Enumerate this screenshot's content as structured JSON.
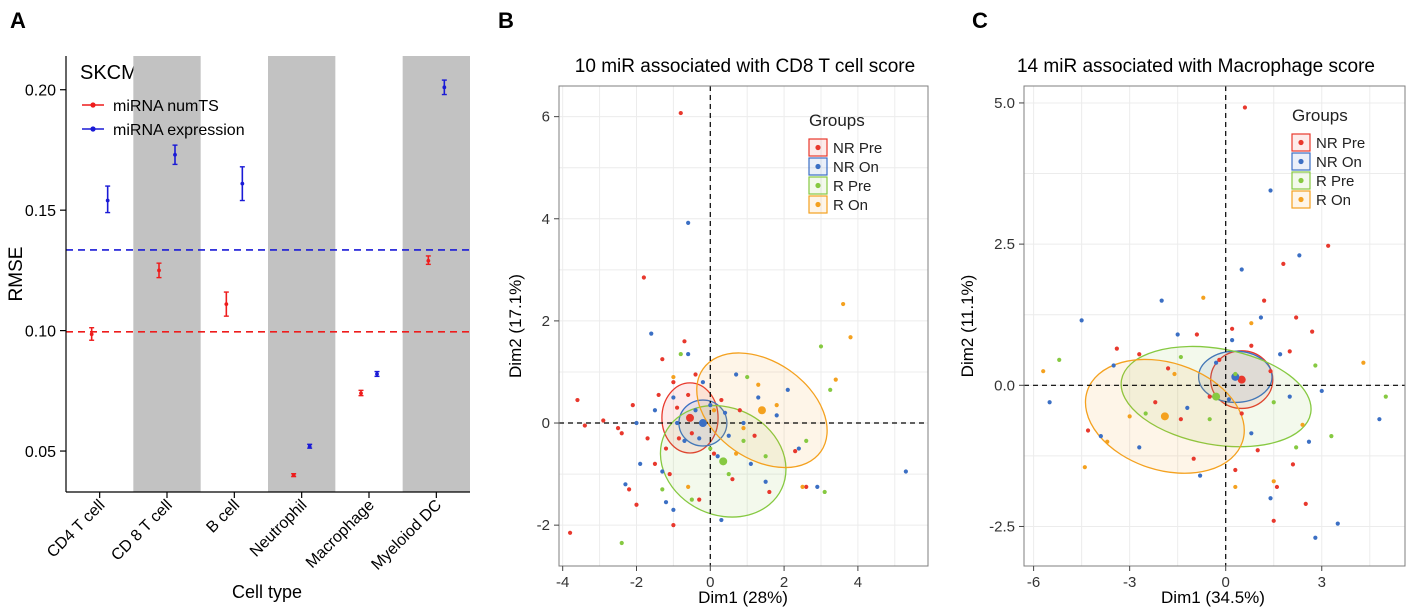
{
  "panels": {
    "A": {
      "letter": "A",
      "title": "SKCM",
      "chart_data": {
        "type": "errorbar",
        "categories": [
          "CD4 T cell",
          "CD 8 T cell",
          "B cell",
          "Neutrophil",
          "Macrophage",
          "Myeloiod DC"
        ],
        "shaded_categories": [
          "CD 8 T cell",
          "Neutrophil",
          "Myeloiod DC"
        ],
        "xlabel": "Cell type",
        "ylabel": "RMSE",
        "ylim": [
          0.033,
          0.214
        ],
        "yticks": [
          0.05,
          0.1,
          0.15,
          0.2
        ],
        "ytick_labels": [
          "0.05",
          "0.10",
          "0.15",
          "0.20"
        ],
        "legend_position": "top-left",
        "series": [
          {
            "name": "miRNA numTS",
            "color": "#ee1c1c",
            "mean": [
              0.0985,
              0.125,
              0.111,
              0.04,
              0.074,
              0.129
            ],
            "lower": [
              0.096,
              0.122,
              0.106,
              0.0394,
              0.073,
              0.1275
            ],
            "upper": [
              0.1012,
              0.128,
              0.116,
              0.0406,
              0.0752,
              0.131
            ],
            "hline": 0.0995
          },
          {
            "name": "miRNA expression",
            "color": "#1a1ad6",
            "mean": [
              0.154,
              0.173,
              0.161,
              0.052,
              0.082,
              0.201
            ],
            "lower": [
              0.149,
              0.169,
              0.154,
              0.0512,
              0.081,
              0.198
            ],
            "upper": [
              0.16,
              0.177,
              0.168,
              0.0528,
              0.083,
              0.204
            ],
            "hline": 0.1335
          }
        ]
      }
    },
    "B": {
      "letter": "B",
      "chart_data": {
        "type": "scatter",
        "title": "10 miR associated with CD8 T cell score",
        "xlabel": "Dim1 (28%)",
        "ylabel": "Dim2 (17.1%)",
        "xlim": [
          -4.1,
          5.9
        ],
        "ylim": [
          -2.8,
          6.6
        ],
        "xticks": [
          -4,
          -2,
          0,
          2,
          4
        ],
        "xtick_labels": [
          "-4",
          "-2",
          "0",
          "2",
          "4"
        ],
        "yticks": [
          -2,
          0,
          2,
          4,
          6
        ],
        "ytick_labels": [
          "-2",
          "0",
          "2",
          "4",
          "6"
        ],
        "legend_title": "Groups",
        "legend_position": "top-right",
        "groups": [
          {
            "name": "NR Pre",
            "color": "#e8382d",
            "center": [
              -0.55,
              0.1
            ],
            "ellipse": {
              "rx": 0.95,
              "ry": 0.55,
              "angle": 90
            },
            "points": [
              [
                -0.8,
                6.07
              ],
              [
                -3.8,
                -2.15
              ],
              [
                -3.6,
                0.45
              ],
              [
                -3.4,
                -0.05
              ],
              [
                -2.9,
                0.05
              ],
              [
                -2.5,
                -0.1
              ],
              [
                -2.4,
                -0.2
              ],
              [
                -2.2,
                -1.3
              ],
              [
                -2.1,
                0.35
              ],
              [
                -1.8,
                2.85
              ],
              [
                -1.7,
                -0.3
              ],
              [
                -1.5,
                -0.8
              ],
              [
                -1.4,
                0.55
              ],
              [
                -1.3,
                1.25
              ],
              [
                -1.2,
                -0.5
              ],
              [
                -1.1,
                -1.0
              ],
              [
                -1.0,
                0.8
              ],
              [
                -0.9,
                0.3
              ],
              [
                -0.85,
                -0.3
              ],
              [
                -0.7,
                1.6
              ],
              [
                -0.6,
                0.55
              ],
              [
                -0.5,
                -0.2
              ],
              [
                -0.4,
                0.95
              ],
              [
                -0.3,
                -1.5
              ],
              [
                0.1,
                -0.6
              ],
              [
                0.3,
                0.45
              ],
              [
                0.6,
                -1.1
              ],
              [
                0.8,
                0.25
              ],
              [
                1.2,
                -0.25
              ],
              [
                1.6,
                -1.35
              ],
              [
                2.3,
                -0.55
              ],
              [
                2.6,
                -1.25
              ],
              [
                -2.0,
                -1.6
              ],
              [
                -1.0,
                -2.0
              ]
            ]
          },
          {
            "name": "NR On",
            "color": "#3b6fc4",
            "center": [
              -0.2,
              0.0
            ],
            "ellipse": {
              "rx": 0.65,
              "ry": 0.45,
              "angle": 0
            },
            "points": [
              [
                -0.6,
                3.92
              ],
              [
                -2.3,
                -1.2
              ],
              [
                -2.0,
                0.0
              ],
              [
                -1.9,
                -0.8
              ],
              [
                -1.6,
                1.75
              ],
              [
                -1.5,
                0.25
              ],
              [
                -1.3,
                -0.95
              ],
              [
                -1.2,
                -1.55
              ],
              [
                -1.0,
                0.5
              ],
              [
                -0.9,
                0.0
              ],
              [
                -0.7,
                -0.35
              ],
              [
                -0.6,
                1.35
              ],
              [
                -0.4,
                0.25
              ],
              [
                -0.3,
                -0.3
              ],
              [
                -0.2,
                0.8
              ],
              [
                0.0,
                0.35
              ],
              [
                0.2,
                -0.65
              ],
              [
                0.4,
                0.2
              ],
              [
                0.5,
                -0.25
              ],
              [
                0.7,
                0.95
              ],
              [
                0.9,
                0.0
              ],
              [
                1.1,
                -0.8
              ],
              [
                1.3,
                0.5
              ],
              [
                1.5,
                -1.15
              ],
              [
                1.8,
                0.15
              ],
              [
                2.1,
                0.65
              ],
              [
                2.4,
                -0.5
              ],
              [
                2.9,
                -1.25
              ],
              [
                5.3,
                -0.95
              ],
              [
                -1.0,
                -1.7
              ],
              [
                0.3,
                -1.9
              ]
            ]
          },
          {
            "name": "R Pre",
            "color": "#86c941",
            "center": [
              0.35,
              -0.75
            ],
            "ellipse": {
              "rx": 1.75,
              "ry": 1.05,
              "angle": -25
            },
            "points": [
              [
                -2.4,
                -2.35
              ],
              [
                -1.3,
                -1.3
              ],
              [
                -0.8,
                1.35
              ],
              [
                -0.5,
                -1.5
              ],
              [
                0.0,
                -0.5
              ],
              [
                0.5,
                -1.0
              ],
              [
                0.9,
                -0.35
              ],
              [
                1.5,
                -0.65
              ],
              [
                2.6,
                -0.35
              ],
              [
                3.0,
                1.5
              ],
              [
                3.1,
                -1.35
              ],
              [
                3.25,
                0.65
              ],
              [
                1.0,
                0.9
              ]
            ]
          },
          {
            "name": "R On",
            "color": "#f4a11f",
            "center": [
              1.4,
              0.25
            ],
            "ellipse": {
              "rx": 1.95,
              "ry": 0.95,
              "angle": -35
            },
            "points": [
              [
                -1.0,
                0.9
              ],
              [
                -0.6,
                -1.25
              ],
              [
                0.1,
                0.25
              ],
              [
                0.7,
                -0.6
              ],
              [
                1.3,
                0.75
              ],
              [
                1.8,
                0.35
              ],
              [
                2.5,
                -1.25
              ],
              [
                3.4,
                0.85
              ],
              [
                3.6,
                2.33
              ],
              [
                3.8,
                1.68
              ],
              [
                0.9,
                -0.1
              ]
            ]
          }
        ]
      }
    },
    "C": {
      "letter": "C",
      "chart_data": {
        "type": "scatter",
        "title": "14 miR associated with Macrophage score",
        "xlabel": "Dim1 (34.5%)",
        "ylabel": "Dim2 (11.1%)",
        "xlim": [
          -6.3,
          5.6
        ],
        "ylim": [
          -3.2,
          5.3
        ],
        "xticks": [
          -6,
          -3,
          0,
          3
        ],
        "xtick_labels": [
          "-6",
          "-3",
          "0",
          "3"
        ],
        "yticks": [
          -2.5,
          0.0,
          2.5,
          5.0
        ],
        "ytick_labels": [
          "-2.5",
          "0.0",
          "2.5",
          "5.0"
        ],
        "legend_title": "Groups",
        "legend_position": "top-right",
        "groups": [
          {
            "name": "NR Pre",
            "color": "#e8382d",
            "center": [
              0.5,
              0.1
            ],
            "ellipse": {
              "rx": 0.9,
              "ry": 0.55,
              "angle": 90
            },
            "points": [
              [
                0.6,
                4.92
              ],
              [
                -4.3,
                -0.8
              ],
              [
                -3.4,
                0.65
              ],
              [
                -2.7,
                0.55
              ],
              [
                -2.2,
                -0.3
              ],
              [
                -1.8,
                0.3
              ],
              [
                -1.4,
                -0.6
              ],
              [
                -0.9,
                0.9
              ],
              [
                -0.5,
                -0.2
              ],
              [
                -0.2,
                0.45
              ],
              [
                0.2,
                1.0
              ],
              [
                0.5,
                -0.5
              ],
              [
                0.8,
                0.7
              ],
              [
                1.0,
                -1.15
              ],
              [
                1.2,
                1.5
              ],
              [
                1.4,
                0.25
              ],
              [
                1.6,
                -1.8
              ],
              [
                1.8,
                2.15
              ],
              [
                2.0,
                0.6
              ],
              [
                2.1,
                -1.4
              ],
              [
                2.2,
                1.2
              ],
              [
                2.5,
                -2.1
              ],
              [
                2.7,
                0.95
              ],
              [
                3.2,
                2.47
              ],
              [
                0.3,
                -1.5
              ],
              [
                -1.0,
                -1.3
              ],
              [
                1.5,
                -2.4
              ]
            ]
          },
          {
            "name": "NR On",
            "color": "#3b6fc4",
            "center": [
              0.3,
              0.15
            ],
            "ellipse": {
              "rx": 0.8,
              "ry": 0.65,
              "angle": 90
            },
            "points": [
              [
                1.4,
                3.45
              ],
              [
                -5.5,
                -0.3
              ],
              [
                -4.5,
                1.15
              ],
              [
                -3.9,
                -0.9
              ],
              [
                -3.5,
                0.35
              ],
              [
                -2.7,
                -1.1
              ],
              [
                -2.0,
                1.5
              ],
              [
                -1.5,
                0.9
              ],
              [
                -1.2,
                -0.4
              ],
              [
                -0.8,
                -1.6
              ],
              [
                -0.3,
                0.4
              ],
              [
                0.1,
                -0.25
              ],
              [
                0.5,
                2.05
              ],
              [
                0.8,
                -0.85
              ],
              [
                1.1,
                1.2
              ],
              [
                1.4,
                -2.0
              ],
              [
                1.7,
                0.55
              ],
              [
                2.0,
                -0.2
              ],
              [
                2.3,
                2.3
              ],
              [
                2.6,
                -1.0
              ],
              [
                3.0,
                -0.1
              ],
              [
                3.5,
                -2.45
              ],
              [
                4.8,
                -0.6
              ],
              [
                2.8,
                -2.7
              ],
              [
                0.2,
                0.8
              ]
            ]
          },
          {
            "name": "R Pre",
            "color": "#86c941",
            "center": [
              -0.3,
              -0.2
            ],
            "ellipse": {
              "rx": 3.0,
              "ry": 0.85,
              "angle": -10
            },
            "points": [
              [
                -5.2,
                0.45
              ],
              [
                -1.4,
                0.5
              ],
              [
                -0.5,
                -0.6
              ],
              [
                1.5,
                -0.3
              ],
              [
                2.2,
                -1.1
              ],
              [
                3.3,
                -0.9
              ],
              [
                5.0,
                -0.2
              ],
              [
                0.3,
                0.2
              ],
              [
                2.8,
                0.35
              ],
              [
                -2.5,
                -0.5
              ]
            ]
          },
          {
            "name": "R On",
            "color": "#f4a11f",
            "center": [
              -1.9,
              -0.55
            ],
            "ellipse": {
              "rx": 2.55,
              "ry": 0.95,
              "angle": -18
            },
            "points": [
              [
                -5.7,
                0.25
              ],
              [
                -4.4,
                -1.45
              ],
              [
                -3.7,
                -1.0
              ],
              [
                -3.0,
                -0.55
              ],
              [
                -1.6,
                0.2
              ],
              [
                -0.7,
                1.55
              ],
              [
                0.3,
                -1.8
              ],
              [
                1.5,
                -1.7
              ],
              [
                2.4,
                -0.7
              ],
              [
                4.3,
                0.4
              ],
              [
                0.8,
                1.1
              ]
            ]
          }
        ]
      }
    }
  }
}
